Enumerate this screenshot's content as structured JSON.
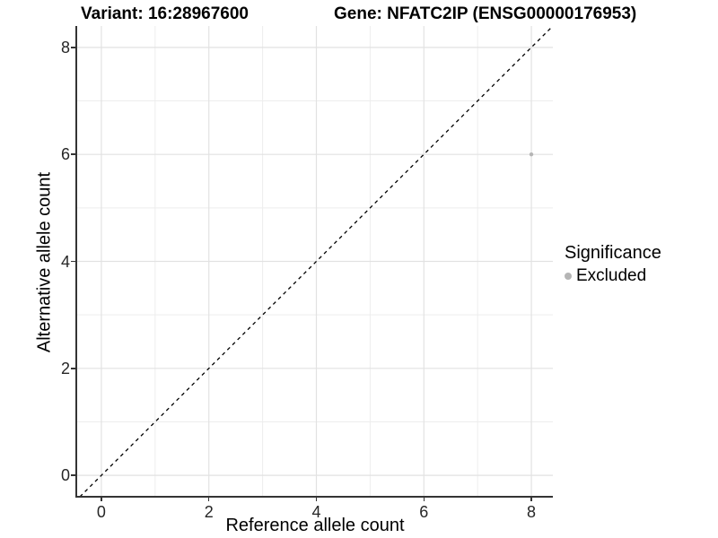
{
  "titles": {
    "variant": "Variant: 16:28967600",
    "gene": "Gene: NFATC2IP (ENSG00000176953)"
  },
  "chart_data": {
    "type": "scatter",
    "xlabel": "Reference allele count",
    "ylabel": "Alternative allele count",
    "xlim": [
      -0.45,
      8.4
    ],
    "ylim": [
      -0.4,
      8.4
    ],
    "x_ticks": [
      0,
      2,
      4,
      6,
      8
    ],
    "y_ticks": [
      0,
      2,
      4,
      6,
      8
    ],
    "x_minor_ticks": [
      1,
      3,
      5,
      7
    ],
    "y_minor_ticks": [
      1,
      3,
      5,
      7
    ],
    "grid": "on",
    "identity_line": {
      "type": "y=x",
      "style": "dashed",
      "color": "#000000"
    },
    "series": [
      {
        "name": "Excluded",
        "color": "#b5b5b5",
        "points": [
          {
            "x": 8,
            "y": 6
          }
        ]
      }
    ],
    "legend": {
      "title": "Significance",
      "position": "right",
      "items": [
        {
          "label": "Excluded",
          "color": "#b5b5b5"
        }
      ]
    },
    "colors": {
      "grid_major": "#e2e2e2",
      "grid_minor": "#ededed",
      "axis_line": "#343434",
      "tick_text": "#262626"
    }
  }
}
